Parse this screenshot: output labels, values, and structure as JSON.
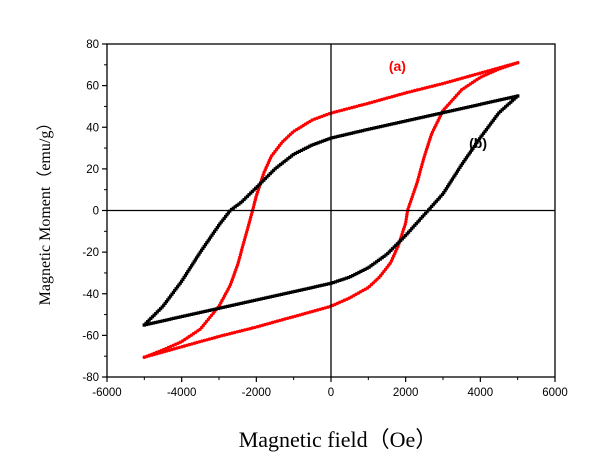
{
  "chart_data": {
    "type": "scatter",
    "title": "",
    "xlabel": "Magnetic field（Oe）",
    "ylabel": "Magnetic Moment（emu/g）",
    "xlim": [
      -6000,
      6000
    ],
    "ylim": [
      -80,
      80
    ],
    "xticks": [
      -6000,
      -4000,
      -2000,
      0,
      2000,
      4000,
      6000
    ],
    "xtick_labels": [
      "-6000",
      "-4000",
      "-2000",
      "0",
      "2000",
      "4000",
      "6000"
    ],
    "yticks": [
      -80,
      -60,
      -40,
      -20,
      0,
      20,
      40,
      60,
      80
    ],
    "ytick_labels": [
      "-80",
      "-60",
      "-40",
      "-20",
      "0",
      "20",
      "40",
      "60",
      "80"
    ],
    "grid": false,
    "zero_lines": true,
    "series": [
      {
        "name": "(a)",
        "color": "#ff0000",
        "descending": {
          "x": [
            5000,
            4000,
            3000,
            2000,
            1000,
            0,
            -500,
            -1000,
            -1300,
            -1600,
            -1800,
            -2000,
            -2100,
            -2300,
            -2500,
            -2700,
            -3000,
            -3500,
            -4000,
            -4500,
            -5000
          ],
          "y": [
            71,
            66,
            61,
            56.5,
            51.5,
            46.8,
            43.5,
            38,
            33,
            26,
            18,
            7,
            0,
            -13,
            -26,
            -36,
            -46,
            -57,
            -63,
            -67,
            -70.5
          ]
        },
        "ascending": {
          "x": [
            -5000,
            -4000,
            -3000,
            -2000,
            -1000,
            0,
            500,
            1000,
            1300,
            1600,
            1800,
            2000,
            2050,
            2300,
            2500,
            2700,
            3000,
            3500,
            4000,
            4500,
            5000
          ],
          "y": [
            -70.5,
            -65.5,
            -60.5,
            -56,
            -51,
            -46,
            -42,
            -37,
            -32,
            -25,
            -17,
            -6,
            0,
            13,
            26,
            37,
            48,
            58,
            64,
            68,
            71
          ]
        }
      },
      {
        "name": "(b)",
        "color": "#000000",
        "descending": {
          "x": [
            5000,
            4000,
            3000,
            2000,
            1000,
            0,
            -500,
            -1000,
            -1500,
            -2000,
            -2400,
            -2700,
            -3000,
            -3500,
            -4000,
            -4500,
            -5000
          ],
          "y": [
            55,
            51,
            47,
            43,
            39,
            34.8,
            31.5,
            27,
            20,
            11,
            4,
            0,
            -7,
            -20,
            -34,
            -46,
            -55
          ]
        },
        "ascending": {
          "x": [
            -5000,
            -4000,
            -3000,
            -2000,
            -1000,
            0,
            500,
            1000,
            1500,
            2000,
            2400,
            2600,
            3000,
            3500,
            4000,
            4500,
            5000
          ],
          "y": [
            -55,
            -51,
            -47,
            -43,
            -39,
            -35,
            -32,
            -27.5,
            -21,
            -12,
            -4,
            0,
            8,
            22,
            35,
            47,
            55
          ]
        }
      }
    ],
    "annotations": [
      {
        "text": "(a)",
        "x": 1550,
        "y": 67,
        "color": "#ff0000"
      },
      {
        "text": "(b)",
        "x": 3700,
        "y": 30,
        "color": "#000000"
      }
    ]
  }
}
